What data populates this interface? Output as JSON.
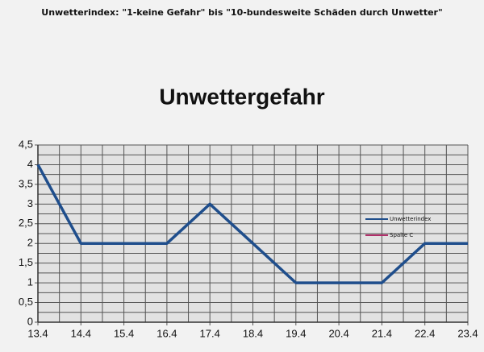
{
  "chart_data": {
    "type": "line",
    "caption": "Unwetterindex: \"1-keine Gefahr\" bis \"10-bundesweite Schäden durch Unwetter\"",
    "title": "Unwettergefahr",
    "categories": [
      "13.4",
      "14.4",
      "15.4",
      "16.4",
      "17.4",
      "18.4",
      "19.4",
      "20.4",
      "21.4",
      "22.4",
      "23.4"
    ],
    "series": [
      {
        "name": "Unwetterindex",
        "color": "#1f4e8c",
        "values": [
          4,
          2,
          2,
          2,
          3,
          2,
          1,
          1,
          1,
          2,
          2
        ]
      },
      {
        "name": "Spalte C",
        "color": "#b0306a",
        "values": [
          null,
          null,
          null,
          null,
          null,
          null,
          null,
          null,
          null,
          null,
          null
        ]
      }
    ],
    "ylim": [
      0,
      4.5
    ],
    "yticks": [
      0,
      {
        "value": 0.5,
        "label": "0,5"
      },
      1,
      {
        "value": 1.5,
        "label": "1,5"
      },
      2,
      {
        "value": 2.5,
        "label": "2,5"
      },
      3,
      {
        "value": 3.5,
        "label": "3,5"
      },
      4,
      {
        "value": 4.5,
        "label": "4,5"
      }
    ],
    "grid": true,
    "legend": "right"
  }
}
